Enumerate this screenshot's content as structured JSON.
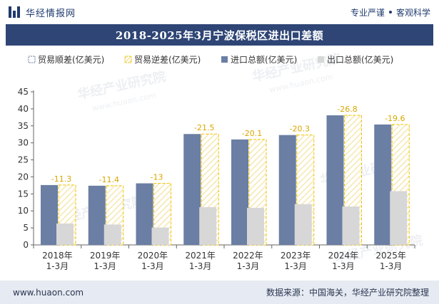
{
  "header": {
    "brand_name": "华经情报网",
    "slogan_left": "专业严谨",
    "slogan_right": "客观科学"
  },
  "colors": {
    "import": "#6b7ea3",
    "export": "#d7d7d7",
    "surplus_border": "#6b7ea3",
    "deficit_border": "#f2c200",
    "title_bg": "#2e4575"
  },
  "icons": {
    "logo": "bar-logo-icon"
  },
  "watermark": {
    "text": "华经产业研究院",
    "url": "www.huaon.com"
  },
  "chart_data": {
    "type": "bar",
    "title": "2018-2025年3月宁波保税区进出口差额",
    "categories": [
      "2018年\n1-3月",
      "2019年\n1-3月",
      "2020年\n1-3月",
      "2021年\n1-3月",
      "2022年\n1-3月",
      "2023年\n1-3月",
      "2024年\n1-3月",
      "2025年\n1-3月"
    ],
    "series": [
      {
        "name": "贸易顺差(亿美元)",
        "values": [
          null,
          null,
          null,
          null,
          null,
          null,
          null,
          null
        ]
      },
      {
        "name": "贸易逆差(亿美元)",
        "values": [
          -11.3,
          -11.4,
          -13,
          -21.5,
          -20.1,
          -20.3,
          -26.8,
          -19.6
        ]
      },
      {
        "name": "进口总额(亿美元)",
        "values": [
          17.6,
          17.4,
          18.1,
          32.6,
          31.0,
          32.3,
          38.1,
          35.4
        ]
      },
      {
        "name": "出口总额(亿美元)",
        "values": [
          6.3,
          6.0,
          5.1,
          11.1,
          10.9,
          12.0,
          11.3,
          15.8
        ]
      }
    ],
    "xlabel": "",
    "ylabel": "",
    "ylim": [
      0,
      45
    ],
    "yticks": [
      0,
      5,
      10,
      15,
      20,
      25,
      30,
      35,
      40,
      45
    ],
    "legend_position": "top",
    "grid": false
  },
  "footer": {
    "url": "www.huaon.com",
    "source": "数据来源：中国海关，华经产业研究院整理"
  }
}
